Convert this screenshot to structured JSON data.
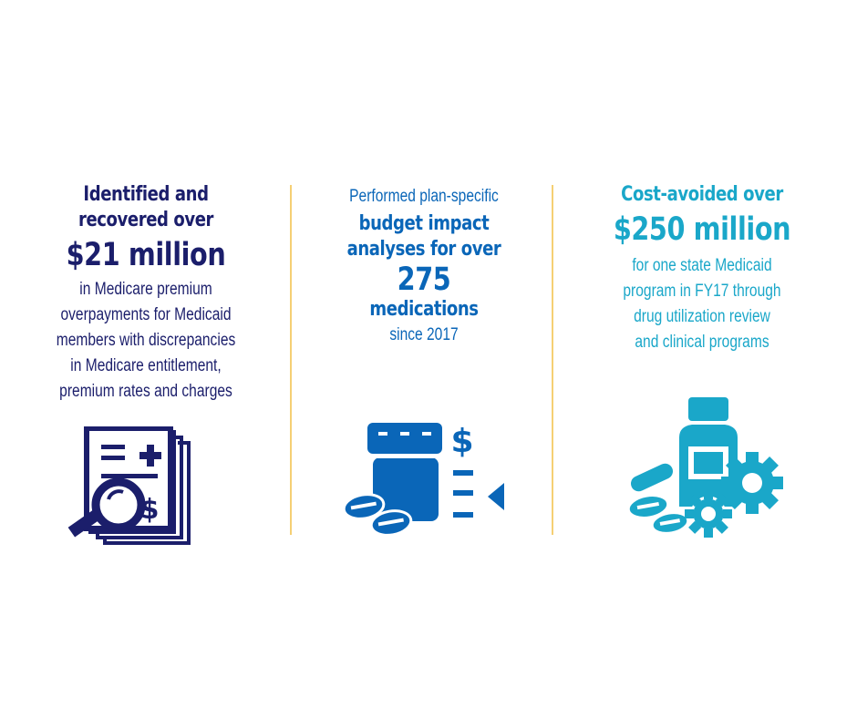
{
  "col1": {
    "line1": "Identified and",
    "line2": "recovered over",
    "amount": "$21 million",
    "body": [
      "in Medicare premium",
      "overpayments for Medicaid",
      "members with discrepancies",
      "in Medicare entitlement,",
      "premium rates and charges"
    ],
    "icon": "document-magnifier-dollar-icon",
    "color": "#1b1e6b"
  },
  "col2": {
    "intro": "Performed plan-specific",
    "line1": "budget impact",
    "line2": "analyses for over",
    "number": "275",
    "line3": "medications",
    "since": "since 2017",
    "icon": "pill-bottle-dollar-icon",
    "color": "#0a66b8"
  },
  "col3": {
    "line1": "Cost-avoided over",
    "amount": "$250 million",
    "body": [
      "for one state Medicaid",
      "program in FY17 through",
      "drug utilization review",
      "and clinical programs"
    ],
    "icon": "medicine-gears-icon",
    "color": "#1aa7c9"
  },
  "divider_color": "#f5cf74"
}
